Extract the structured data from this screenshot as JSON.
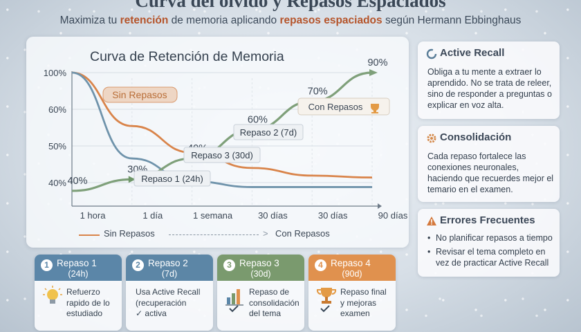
{
  "header": {
    "title": "Curva del olvido y Repasos Espaciados",
    "subtitle_parts": [
      "Maximiza tu ",
      "retención",
      " de memoria aplicando ",
      "repasos espaciados",
      " según Hermann Ebbinghaus"
    ]
  },
  "chart_data": {
    "type": "line",
    "title": "Curva de Retención de Memoria",
    "x": [
      "1 hora",
      "1 día",
      "1 semana",
      "30 días",
      "30 días",
      "90 días"
    ],
    "y_ticks": [
      "100%",
      "60%",
      "50%",
      "40%"
    ],
    "series": [
      {
        "name": "Sin Repasos",
        "color": "#d9844a",
        "values": [
          100,
          72,
          58,
          50,
          46,
          45
        ]
      },
      {
        "name": "Sin Repasos",
        "color": "#6f93ab",
        "values": [
          100,
          55,
          43,
          40,
          40,
          40
        ]
      },
      {
        "name": "Con Repasos",
        "color": "#7fa07a",
        "values": [
          38,
          44,
          55,
          70,
          85,
          100
        ]
      }
    ],
    "point_labels": [
      "40%",
      "30%",
      "40%",
      "60%",
      "70%",
      "90%"
    ],
    "annotations": [
      "Repaso 1 (24h)",
      "Repaso 3 (30d)",
      "Repaso 2 (7d)"
    ],
    "badges": {
      "sin_repasos": "Sin Repasos",
      "con_repasos": "Con Repasos"
    },
    "legend": [
      "Sin Repasos",
      "Con Repasos"
    ],
    "grid": true
  },
  "cards": [
    {
      "title": "Active Recall",
      "icon": "recall-icon",
      "body": "Obliga a tu mente a extraer lo aprendido. No se trata de releer, sino de responder a preguntas o explicar en voz alta."
    },
    {
      "title": "Consolidación",
      "icon": "gear-icon",
      "body": "Cada repaso fortalece las conexiones neuronales, haciendo que recuerdes mejor el temario en el examen."
    },
    {
      "title": "Errores Frecuentes",
      "icon": "warning-icon",
      "items": [
        "No planificar repasos a tiempo",
        "Revisar el tema completo en vez de practicar Active Recall"
      ]
    }
  ],
  "steps": [
    {
      "num": "1",
      "label": "Repaso 1",
      "detail": "(24h)",
      "body": "Refuerzo rapido de lo estudiado",
      "color": "#5b86a8",
      "icon": "lightbulb-icon"
    },
    {
      "num": "2",
      "label": "Repaso 2",
      "detail": "(7d)",
      "body": "Usa Active Recall (recuperación",
      "body2": "activa",
      "color": "#5c86a6",
      "icon": "check-icon"
    },
    {
      "num": "3",
      "label": "Repaso 3",
      "detail": "(30d)",
      "body": "Repaso de consolidación del tema",
      "color": "#7a9a6e",
      "icon": "bar-chart-icon"
    },
    {
      "num": "4",
      "label": "Repaso 4",
      "detail": "(90d)",
      "body": "Repaso final y mejoras examen",
      "color": "#e0914e",
      "icon": "trophy-icon"
    }
  ]
}
